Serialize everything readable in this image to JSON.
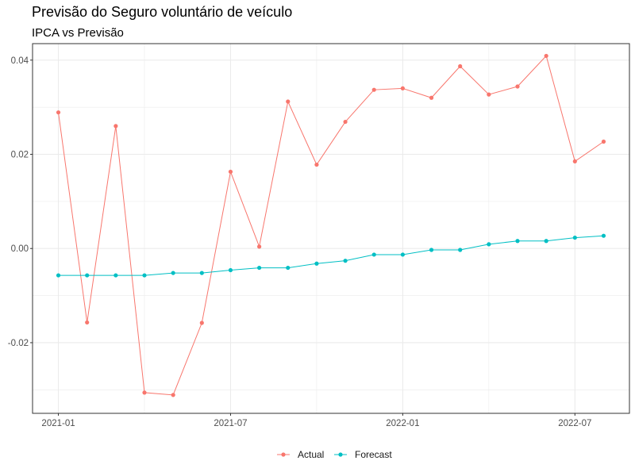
{
  "chart_data": {
    "type": "line",
    "title": "Previsão do Seguro voluntário de veículo",
    "subtitle": "IPCA vs Previsão",
    "xlabel": "",
    "ylabel": "",
    "x": [
      "2021-01",
      "2021-02",
      "2021-03",
      "2021-04",
      "2021-05",
      "2021-06",
      "2021-07",
      "2021-08",
      "2021-09",
      "2021-10",
      "2021-11",
      "2021-12",
      "2022-01",
      "2022-02",
      "2022-03",
      "2022-04",
      "2022-05",
      "2022-06",
      "2022-07",
      "2022-08"
    ],
    "x_ticks": [
      "2021-01",
      "2021-07",
      "2022-01",
      "2022-07"
    ],
    "y_ticks": [
      -0.02,
      0.0,
      0.02,
      0.04
    ],
    "y_tick_labels": [
      "-0.02",
      "0.00",
      "0.02",
      "0.04"
    ],
    "ylim": [
      -0.035,
      0.0435
    ],
    "grid": true,
    "legend_position": "bottom",
    "series": [
      {
        "name": "Actual",
        "color": "#F8766D",
        "values": [
          0.0289,
          -0.0157,
          0.026,
          -0.0306,
          -0.0311,
          -0.0158,
          0.0163,
          0.0004,
          0.0312,
          0.0178,
          0.0269,
          0.0337,
          0.034,
          0.032,
          0.0387,
          0.0327,
          0.0344,
          0.0409,
          0.0185,
          0.0227
        ]
      },
      {
        "name": "Forecast",
        "color": "#00BFC4",
        "values": [
          -0.0057,
          -0.0057,
          -0.0057,
          -0.0057,
          -0.0052,
          -0.0052,
          -0.0046,
          -0.0041,
          -0.0041,
          -0.0032,
          -0.0026,
          -0.0013,
          -0.0013,
          -0.0003,
          -0.0003,
          0.0009,
          0.0016,
          0.0016,
          0.0023,
          0.0027
        ]
      }
    ]
  }
}
